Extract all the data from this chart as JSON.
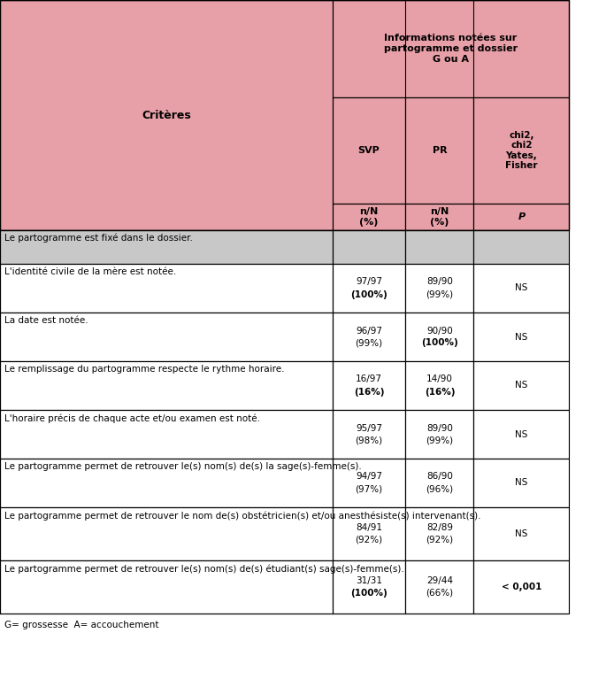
{
  "title_main": "Informations notées sur\npartogramme et dossier\nG ou A",
  "col_header_left": "Critères",
  "col_svp": "SVP",
  "col_pr": "PR",
  "col_stat": "chi2,\nchi2\nYates,\nFisher",
  "subrow1": "n/N\n(%)",
  "subrow2": "n/N\n(%)",
  "subrow3": "P",
  "rows": [
    {
      "critere": "Le partogramme est fixé dans le dossier.",
      "svp": "",
      "pr": "",
      "stat": "",
      "gray_fill": true
    },
    {
      "critere": "L'identité civile de la mère est notée.",
      "svp": "97/97\n(100%)",
      "svp_bold_pct": true,
      "pr": "89/90\n(99%)",
      "pr_bold_pct": false,
      "stat": "NS",
      "gray_fill": false
    },
    {
      "critere": "La date est notée.",
      "svp": "96/97\n(99%)",
      "svp_bold_pct": false,
      "pr": "90/90\n(100%)",
      "pr_bold_pct": true,
      "stat": "NS",
      "gray_fill": false
    },
    {
      "critere": "Le remplissage du partogramme respecte le rythme horaire.",
      "svp": "16/97\n(16%)",
      "svp_bold_pct": true,
      "pr": "14/90\n(16%)",
      "pr_bold_pct": true,
      "stat": "NS",
      "gray_fill": false
    },
    {
      "critere": "L'horaire précis de chaque acte et/ou examen est noté.",
      "svp": "95/97\n(98%)",
      "svp_bold_pct": false,
      "pr": "89/90\n(99%)",
      "pr_bold_pct": false,
      "stat": "NS",
      "gray_fill": false
    },
    {
      "critere": "Le partogramme permet de retrouver le(s) nom(s) de(s) la sage(s)-femme(s).",
      "svp": "94/97\n(97%)",
      "svp_bold_pct": false,
      "pr": "86/90\n(96%)",
      "pr_bold_pct": false,
      "stat": "NS",
      "gray_fill": false
    },
    {
      "critere": "Le partogramme permet de retrouver le nom de(s) obstétricien(s) et/ou anesthésiste(s) intervenant(s).",
      "svp": "84/91\n(92%)",
      "svp_bold_pct": false,
      "pr": "82/89\n(92%)",
      "pr_bold_pct": false,
      "stat": "NS",
      "gray_fill": false
    },
    {
      "critere": "Le partogramme permet de retrouver le(s) nom(s) de(s) étudiant(s) sage(s)-femme(s).",
      "svp": "31/31\n(100%)",
      "svp_bold_pct": true,
      "pr": "29/44\n(66%)",
      "pr_bold_pct": false,
      "stat": "< 0,001",
      "stat_bold": true,
      "gray_fill": false
    }
  ],
  "footnote": "G= grossesse  A= accouchement",
  "header_bg": "#E8A0A8",
  "gray_bg": "#C8C8C8",
  "white_bg": "#FFFFFF",
  "border_color": "#000000",
  "text_color": "#000000"
}
